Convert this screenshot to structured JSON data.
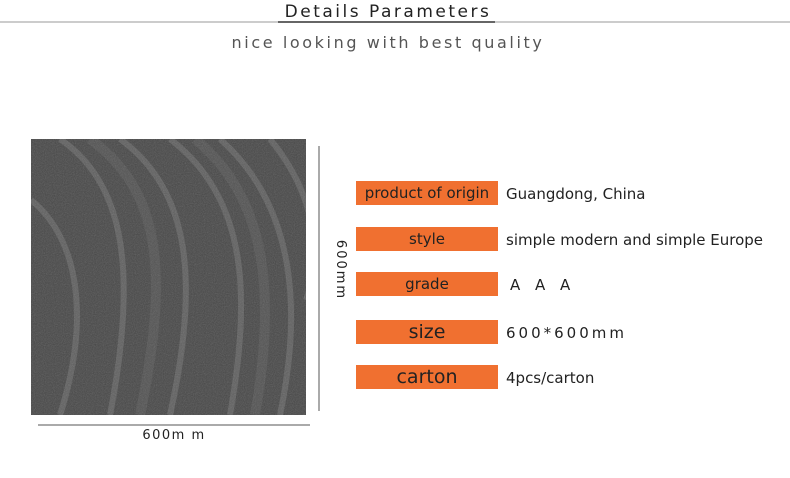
{
  "header": {
    "title": "Details Parameters",
    "subtitle": "nice looking with best quality"
  },
  "dimensions": {
    "height": "600mm",
    "width": "600m m"
  },
  "specs": [
    {
      "label": "product of origin",
      "value": "Guangdong, China"
    },
    {
      "label": "style",
      "value": "simple modern and simple Europe"
    },
    {
      "label": "grade",
      "value": "A A A"
    },
    {
      "label": "size",
      "value": "600*600mm"
    },
    {
      "label": "carton",
      "value": "4pcs/carton"
    }
  ]
}
